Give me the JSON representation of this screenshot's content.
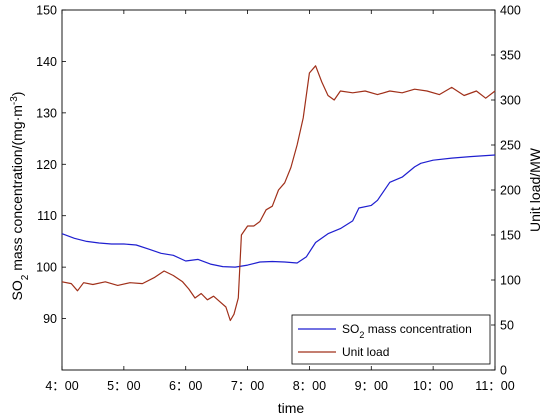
{
  "chart_data": {
    "type": "line",
    "xlabel": "time",
    "ylabel_left": "SO2 mass concentration/(mg·m-3)",
    "ylabel_left_parts": {
      "base": "SO",
      "sub": "2",
      "mid": " mass concentration/(mg·m",
      "sup": "-3",
      "end": ")"
    },
    "ylabel_right": "Unit load/MW",
    "xlim": [
      4,
      11
    ],
    "ylim_left": [
      80,
      150
    ],
    "ylim_right": [
      0,
      400
    ],
    "x_ticks": [
      4,
      5,
      6,
      7,
      8,
      9,
      10,
      11
    ],
    "x_tick_labels": [
      "4：00",
      "5：00",
      "6：00",
      "7：00",
      "8：00",
      "9：00",
      "10：00",
      "11：00"
    ],
    "y_left_ticks": [
      90,
      100,
      110,
      120,
      130,
      140,
      150
    ],
    "y_right_ticks": [
      0,
      50,
      100,
      150,
      200,
      250,
      300,
      350,
      400
    ],
    "grid": false,
    "legend_position": "bottom-right",
    "series": [
      {
        "name": "SO2 mass concentration",
        "legend_parts": {
          "base": "SO",
          "sub": "2",
          "end": " mass concentration"
        },
        "axis": "left",
        "color": "#1f1fd0",
        "x": [
          4.0,
          4.2,
          4.4,
          4.6,
          4.8,
          5.0,
          5.2,
          5.4,
          5.6,
          5.8,
          6.0,
          6.2,
          6.4,
          6.6,
          6.8,
          7.0,
          7.2,
          7.4,
          7.6,
          7.8,
          7.95,
          8.1,
          8.3,
          8.5,
          8.7,
          8.8,
          9.0,
          9.1,
          9.3,
          9.5,
          9.7,
          9.8,
          10.0,
          10.3,
          10.6,
          11.0
        ],
        "y": [
          106.5,
          105.6,
          105.0,
          104.7,
          104.5,
          104.5,
          104.3,
          103.5,
          102.7,
          102.3,
          101.2,
          101.5,
          100.6,
          100.1,
          100.0,
          100.4,
          101.0,
          101.1,
          101.0,
          100.8,
          102.0,
          104.8,
          106.5,
          107.5,
          109.0,
          111.5,
          112.0,
          113.0,
          116.5,
          117.5,
          119.5,
          120.2,
          120.8,
          121.2,
          121.5,
          121.8
        ]
      },
      {
        "name": "Unit load",
        "axis": "right",
        "color": "#a0301a",
        "x": [
          4.0,
          4.15,
          4.25,
          4.35,
          4.5,
          4.7,
          4.9,
          5.1,
          5.3,
          5.5,
          5.65,
          5.8,
          5.95,
          6.05,
          6.15,
          6.25,
          6.35,
          6.45,
          6.55,
          6.65,
          6.72,
          6.78,
          6.85,
          6.9,
          7.0,
          7.1,
          7.2,
          7.3,
          7.4,
          7.5,
          7.6,
          7.7,
          7.8,
          7.9,
          8.0,
          8.1,
          8.2,
          8.3,
          8.4,
          8.5,
          8.7,
          8.9,
          9.1,
          9.3,
          9.5,
          9.7,
          9.9,
          10.1,
          10.3,
          10.5,
          10.7,
          10.85,
          11.0
        ],
        "y": [
          98,
          96,
          88,
          97,
          95,
          98,
          94,
          97,
          96,
          103,
          110,
          105,
          98,
          90,
          80,
          85,
          78,
          82,
          76,
          70,
          55,
          62,
          80,
          150,
          160,
          160,
          165,
          178,
          182,
          200,
          208,
          225,
          250,
          280,
          330,
          338,
          320,
          305,
          300,
          310,
          308,
          310,
          306,
          310,
          308,
          312,
          310,
          306,
          314,
          305,
          310,
          302,
          310
        ]
      }
    ]
  }
}
